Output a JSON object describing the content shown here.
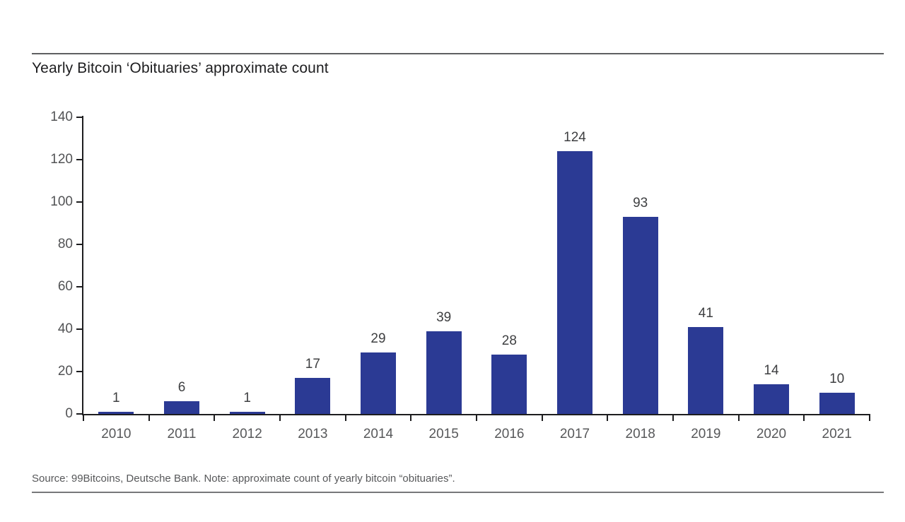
{
  "page": {
    "title": "Yearly Bitcoin ‘Obituaries’ approximate count",
    "source_note": "Source: 99Bitcoins, Deutsche Bank. Note: approximate count of yearly bitcoin “obituaries”."
  },
  "colors": {
    "bar": "#2b3a94",
    "axis": "#1d1d1f",
    "tick_label": "#57585a",
    "value_label": "#3e3f41",
    "title": "#1d1d1f",
    "rule": "#5f6062"
  },
  "chart_data": {
    "type": "bar",
    "title": "Yearly Bitcoin ‘Obituaries’ approximate count",
    "categories": [
      "2010",
      "2011",
      "2012",
      "2013",
      "2014",
      "2015",
      "2016",
      "2017",
      "2018",
      "2019",
      "2020",
      "2021"
    ],
    "values": [
      1,
      6,
      1,
      17,
      29,
      39,
      28,
      124,
      93,
      41,
      14,
      10
    ],
    "xlabel": "",
    "ylabel": "",
    "ylim": [
      0,
      140
    ],
    "yticks": [
      0,
      20,
      40,
      60,
      80,
      100,
      120,
      140
    ],
    "grid": false,
    "legend_position": "none",
    "value_labels": true,
    "source": "Source: 99Bitcoins, Deutsche Bank. Note: approximate count of yearly bitcoin “obituaries”."
  }
}
